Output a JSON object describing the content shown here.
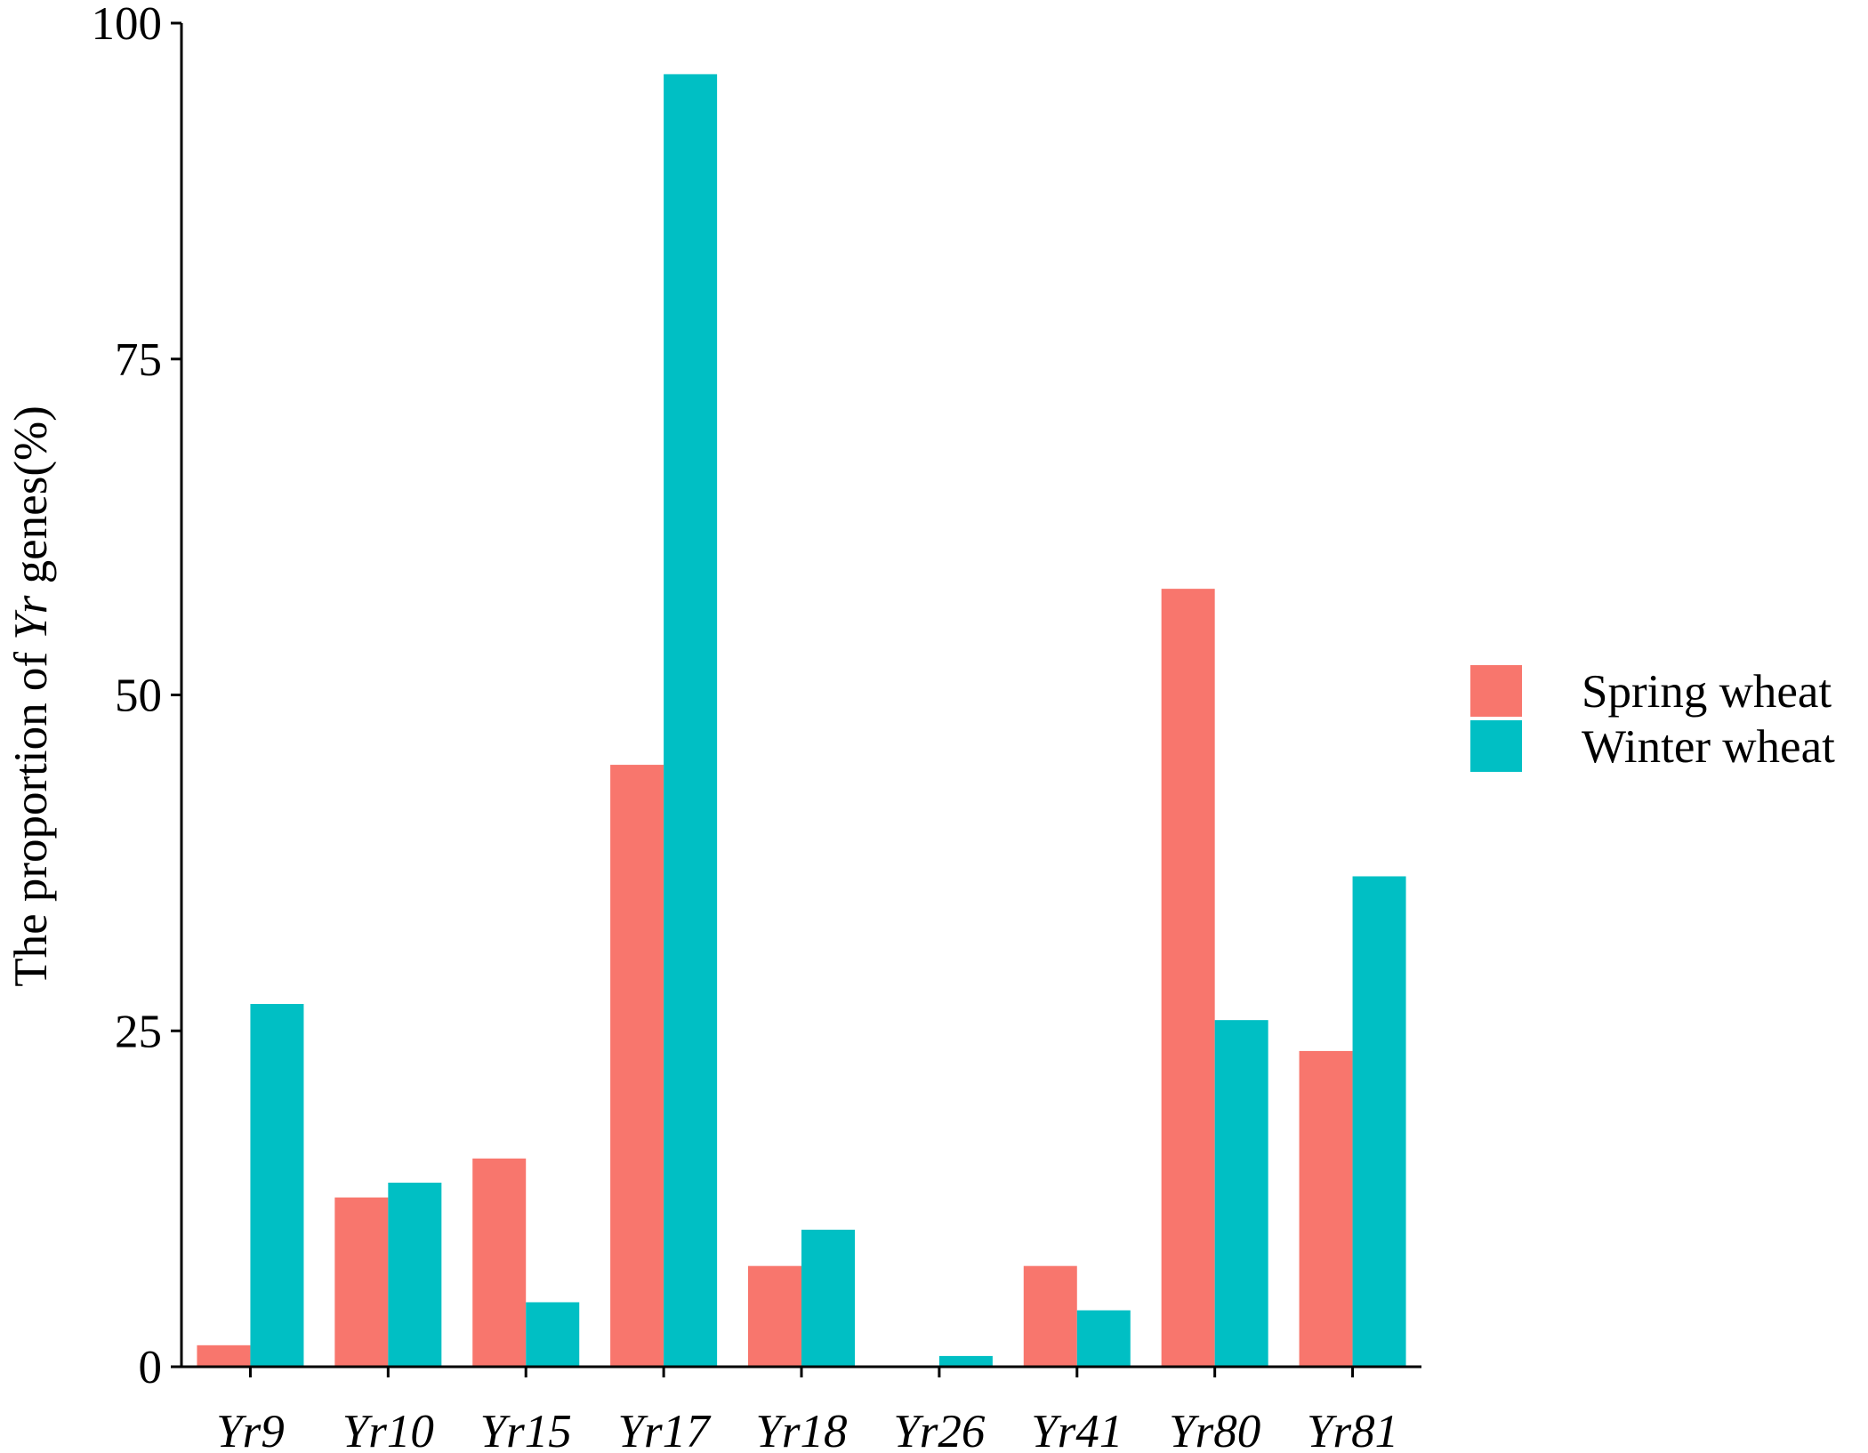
{
  "chart_data": {
    "type": "bar",
    "title": "",
    "xlabel": "",
    "ylabel": {
      "prefix": "The proportion of ",
      "italic": "Yr",
      "suffix": " genes(%)"
    },
    "categories": [
      "Yr9",
      "Yr10",
      "Yr15",
      "Yr17",
      "Yr18",
      "Yr26",
      "Yr41",
      "Yr80",
      "Yr81"
    ],
    "series": [
      {
        "name": "Spring wheat",
        "color": "#F8766D",
        "values": [
          1.6,
          12.6,
          15.5,
          44.8,
          7.5,
          0,
          7.5,
          57.9,
          23.5
        ]
      },
      {
        "name": "Winter wheat",
        "color": "#00BFC4",
        "values": [
          27.0,
          13.7,
          4.8,
          96.2,
          10.2,
          0.8,
          4.2,
          25.8,
          36.5
        ]
      }
    ],
    "ylim": [
      0,
      100
    ],
    "yticks": [
      0,
      25,
      50,
      75,
      100
    ],
    "grid": false,
    "legend_position": "right"
  }
}
